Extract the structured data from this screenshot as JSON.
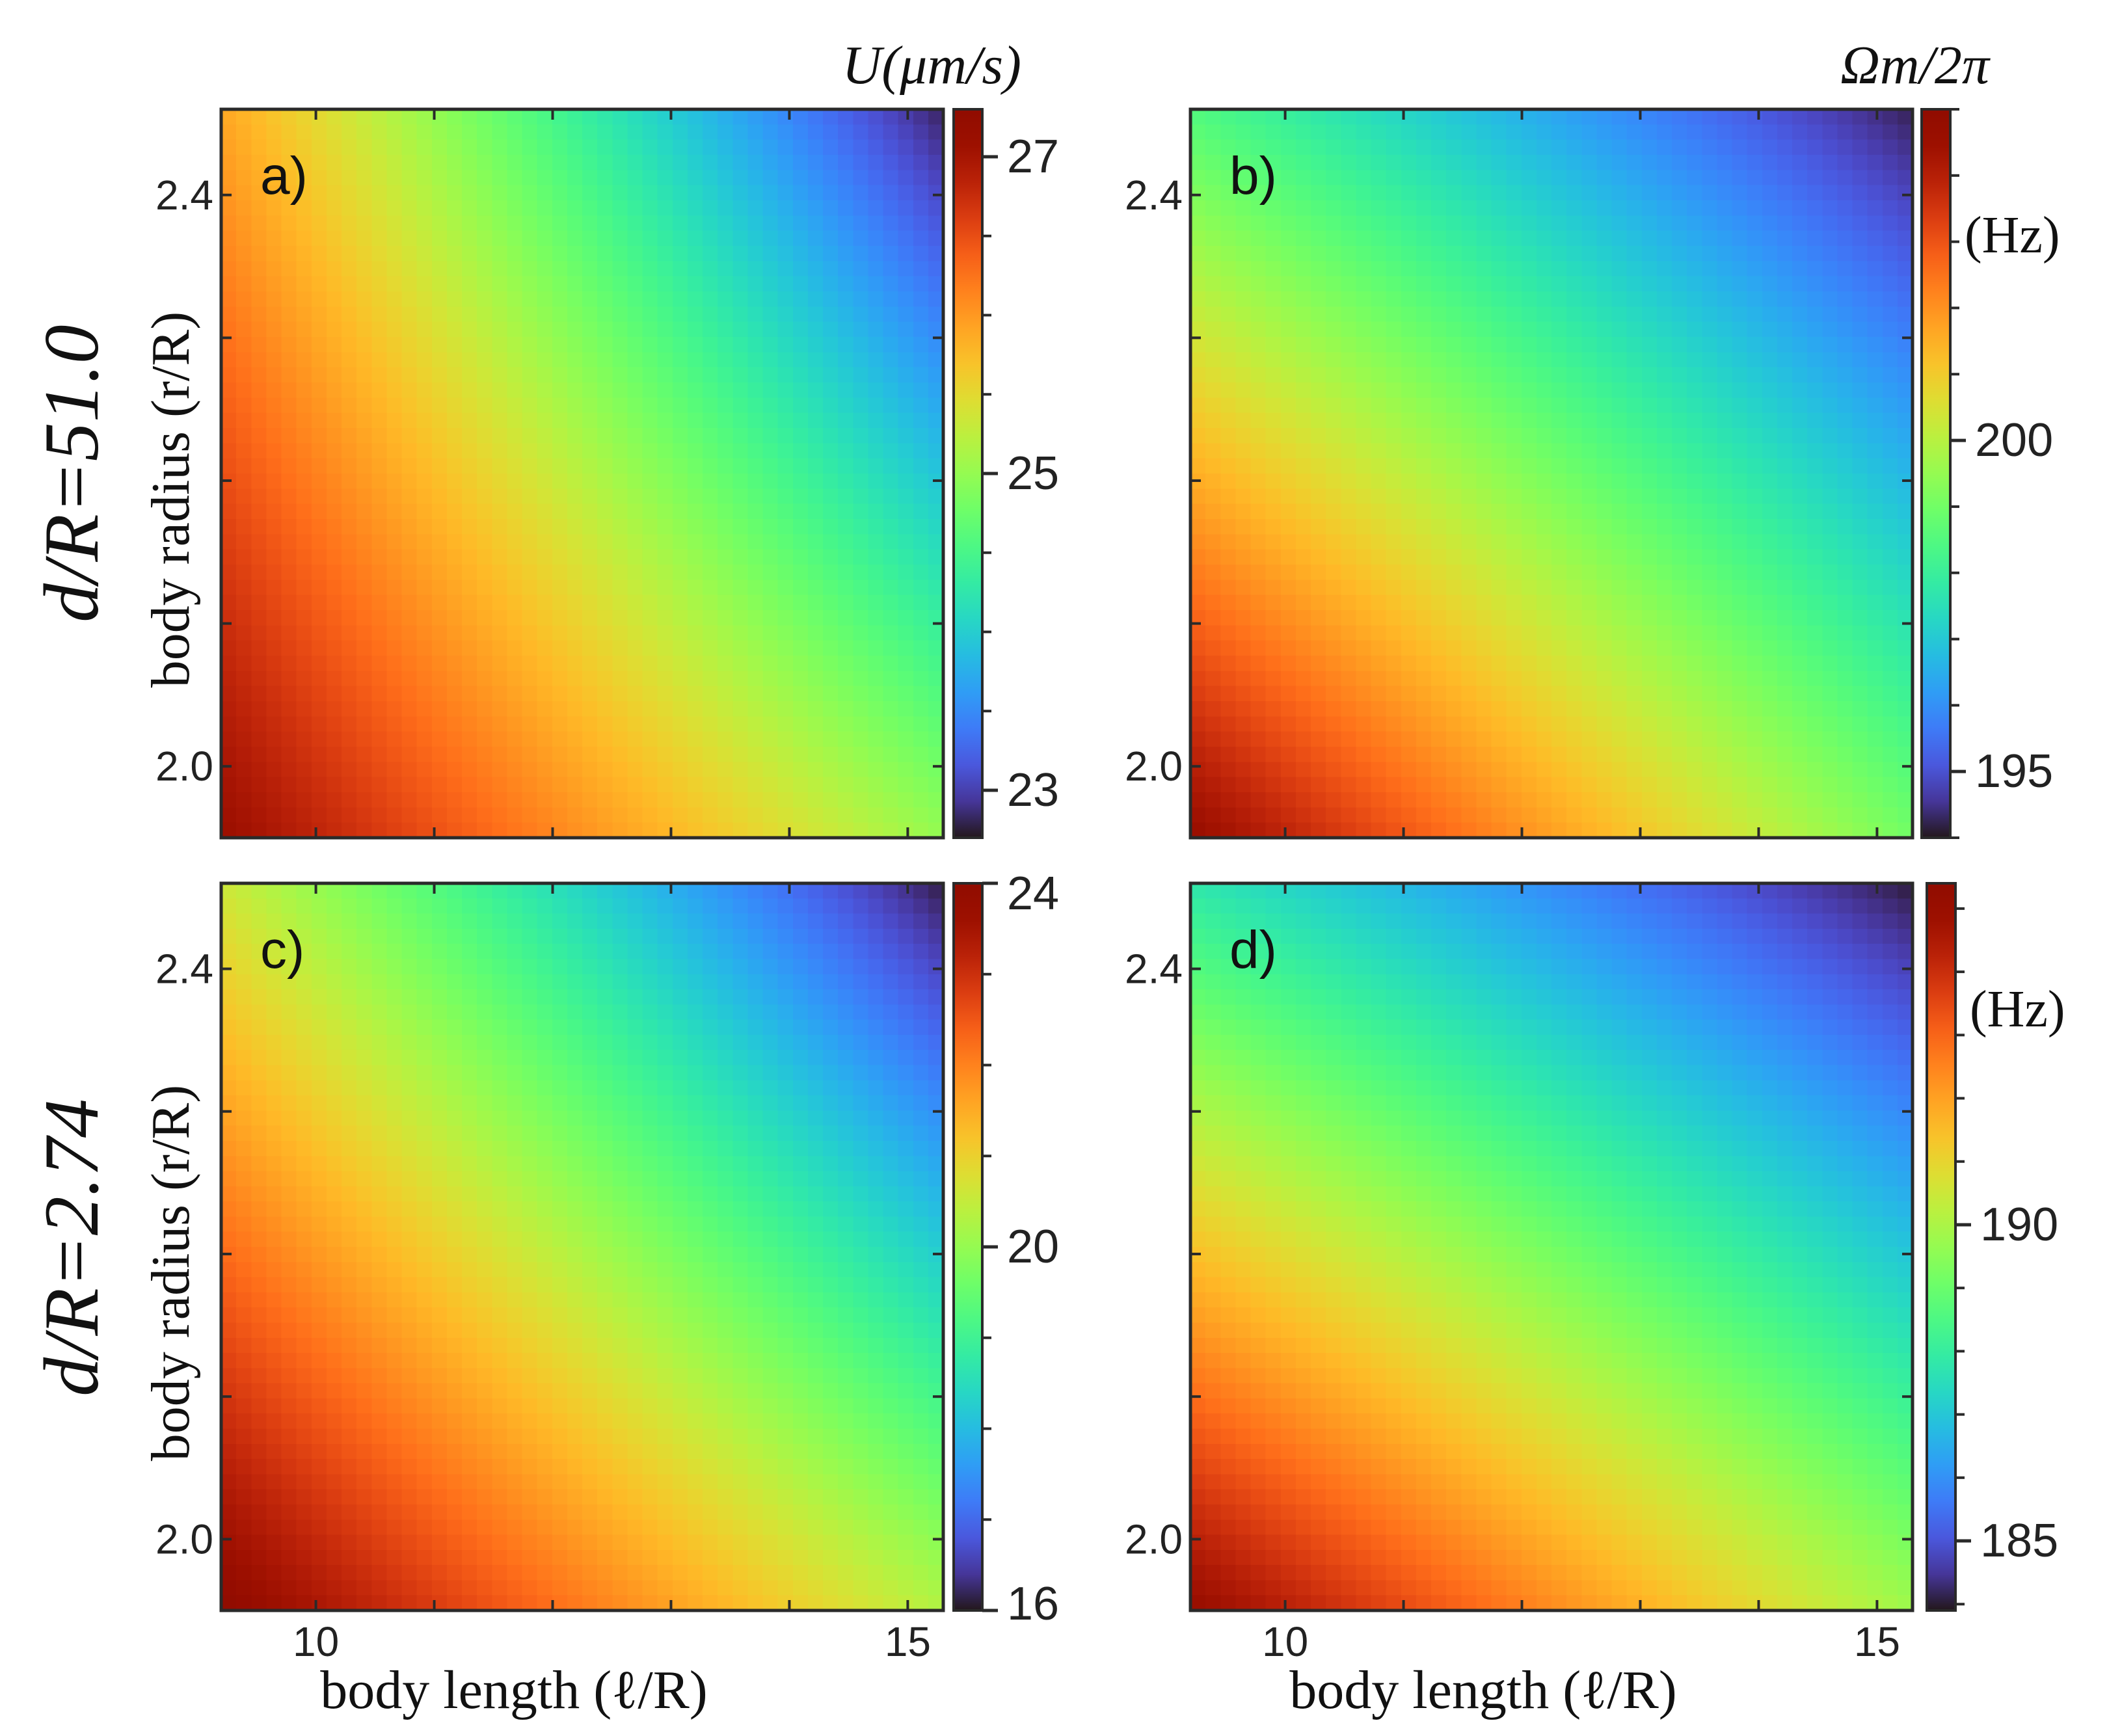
{
  "chart_data": [
    {
      "id": "a",
      "type": "heatmap",
      "panel_label": "a)",
      "colorbar_title": "U(μm/s)",
      "colorbar_ticks": [
        {
          "value": 27,
          "label": "27"
        },
        {
          "value": 25,
          "label": "25"
        },
        {
          "value": 23,
          "label": "23"
        }
      ],
      "colorbar_range": [
        22.7,
        27.3
      ],
      "colorbar_minor_step": 0.5,
      "corner_values": {
        "bottom_left": 27.1,
        "bottom_right": 25.0,
        "top_left": 25.9,
        "top_right": 22.8
      },
      "x_range": [
        9.2,
        15.3
      ],
      "y_range": [
        1.95,
        2.46
      ],
      "x_ticks": [],
      "y_ticks": [
        {
          "value": 2.0,
          "label": "2.0"
        },
        {
          "value": 2.4,
          "label": "2.4"
        }
      ],
      "xlabel": "",
      "ylabel": "body radius (r/R)"
    },
    {
      "id": "b",
      "type": "heatmap",
      "panel_label": "b)",
      "colorbar_title": "Ωm/2π",
      "colorbar_unit": "(Hz)",
      "colorbar_ticks": [
        {
          "value": 200,
          "label": "200"
        },
        {
          "value": 195,
          "label": "195"
        }
      ],
      "colorbar_range": [
        194.0,
        205.0
      ],
      "colorbar_minor_step": 1,
      "corner_values": {
        "bottom_left": 204.6,
        "bottom_right": 199.0,
        "top_left": 198.5,
        "top_right": 194.2
      },
      "x_range": [
        9.2,
        15.3
      ],
      "y_range": [
        1.95,
        2.46
      ],
      "x_ticks": [],
      "y_ticks": [
        {
          "value": 2.0,
          "label": "2.0"
        },
        {
          "value": 2.4,
          "label": "2.4"
        }
      ],
      "xlabel": "",
      "ylabel": ""
    },
    {
      "id": "c",
      "type": "heatmap",
      "panel_label": "c)",
      "colorbar_title": "",
      "colorbar_ticks": [
        {
          "value": 24,
          "label": "24"
        },
        {
          "value": 20,
          "label": "20"
        },
        {
          "value": 16,
          "label": "16"
        }
      ],
      "colorbar_range": [
        16.0,
        24.0
      ],
      "colorbar_minor_step": 1,
      "corner_values": {
        "bottom_left": 23.9,
        "bottom_right": 20.3,
        "top_left": 20.6,
        "top_right": 16.1
      },
      "x_range": [
        9.2,
        15.3
      ],
      "y_range": [
        1.95,
        2.46
      ],
      "x_ticks": [
        {
          "value": 10,
          "label": "10"
        },
        {
          "value": 15,
          "label": "15"
        }
      ],
      "y_ticks": [
        {
          "value": 2.0,
          "label": "2.0"
        },
        {
          "value": 2.4,
          "label": "2.4"
        }
      ],
      "xlabel": "body length (ℓ/R)",
      "ylabel": "body radius (r/R)"
    },
    {
      "id": "d",
      "type": "heatmap",
      "panel_label": "d)",
      "colorbar_title": "",
      "colorbar_unit": "(Hz)",
      "colorbar_ticks": [
        {
          "value": 190,
          "label": "190"
        },
        {
          "value": 185,
          "label": "185"
        }
      ],
      "colorbar_range": [
        183.9,
        195.4
      ],
      "colorbar_minor_step": 1,
      "corner_values": {
        "bottom_left": 195.0,
        "bottom_right": 189.8,
        "top_left": 187.8,
        "top_right": 184.0
      },
      "x_range": [
        9.2,
        15.3
      ],
      "y_range": [
        1.95,
        2.46
      ],
      "x_ticks": [
        {
          "value": 10,
          "label": "10"
        },
        {
          "value": 15,
          "label": "15"
        }
      ],
      "y_ticks": [
        {
          "value": 2.0,
          "label": "2.0"
        },
        {
          "value": 2.4,
          "label": "2.4"
        }
      ],
      "xlabel": "body length (ℓ/R)",
      "ylabel": ""
    }
  ],
  "row_labels": [
    "d/R=51.0",
    "d/R=2.74"
  ],
  "colormap": "turbo"
}
